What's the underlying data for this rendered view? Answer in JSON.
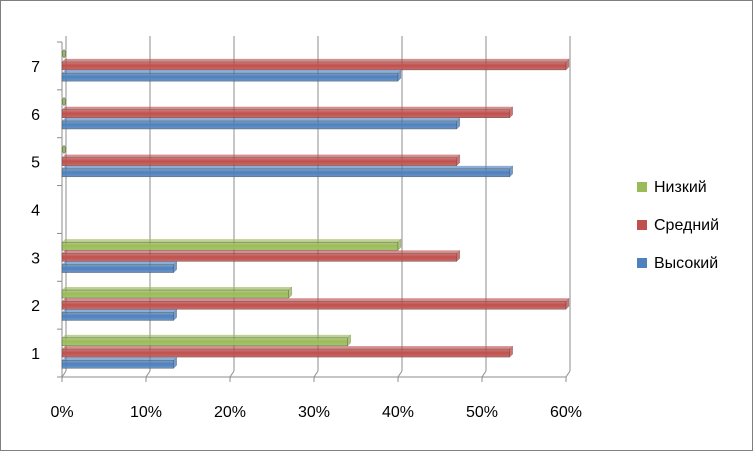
{
  "chart_data": {
    "type": "bar",
    "orientation": "horizontal",
    "categories": [
      "1",
      "2",
      "3",
      "4",
      "5",
      "6",
      "7"
    ],
    "series": [
      {
        "name": "Высокий",
        "color": "#4f81bd",
        "values": [
          13.3,
          13.3,
          13.3,
          null,
          53.3,
          47.0,
          40.0
        ]
      },
      {
        "name": "Средний",
        "color": "#c0504d",
        "values": [
          53.3,
          60.0,
          47.0,
          null,
          47.0,
          53.3,
          60.0
        ]
      },
      {
        "name": "Низкий",
        "color": "#9bbb59",
        "values": [
          34.0,
          27.0,
          40.0,
          null,
          0,
          0,
          0
        ]
      }
    ],
    "xlim": [
      0,
      60
    ],
    "x_ticks": [
      "0%",
      "10%",
      "20%",
      "30%",
      "40%",
      "50%",
      "60%"
    ],
    "grid": true,
    "legend_position": "right",
    "legend_order": [
      "Низкий",
      "Средний",
      "Высокий"
    ],
    "title": "",
    "xlabel": "",
    "ylabel": ""
  }
}
